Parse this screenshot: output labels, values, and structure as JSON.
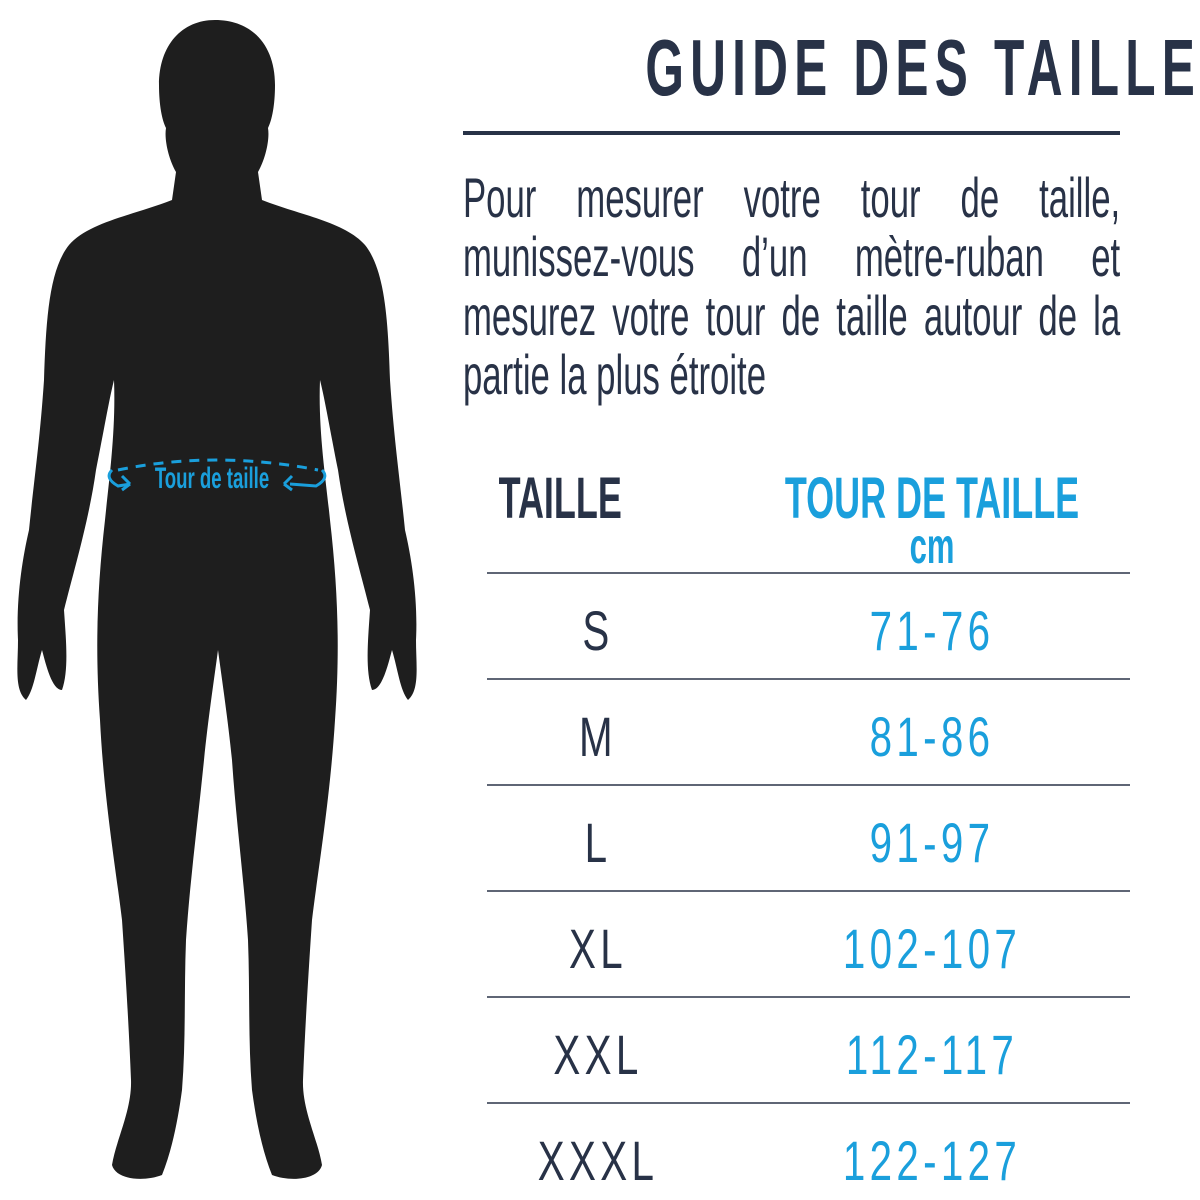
{
  "title": "GUIDE DES TAILLES",
  "instructions": "Pour mesurer votre tour de taille, munissez-vous d’un mètre-ruban et mesurez votre tour de taille autour de la partie la plus étroite",
  "figure": {
    "waist_label": "Tour de taille"
  },
  "table": {
    "headers": {
      "size": "TAILLE",
      "waist": "TOUR DE TAILLE",
      "unit": "cm"
    },
    "rows": [
      {
        "size": "S",
        "waist": "71-76"
      },
      {
        "size": "M",
        "waist": "81-86"
      },
      {
        "size": "L",
        "waist": "91-97"
      },
      {
        "size": "XL",
        "waist": "102-107"
      },
      {
        "size": "XXL",
        "waist": "112-117"
      },
      {
        "size": "XXXL",
        "waist": "122-127"
      }
    ]
  },
  "colors": {
    "navy": "#283247",
    "accent_blue": "#1a9fdc",
    "silhouette": "#1e1e1e"
  }
}
